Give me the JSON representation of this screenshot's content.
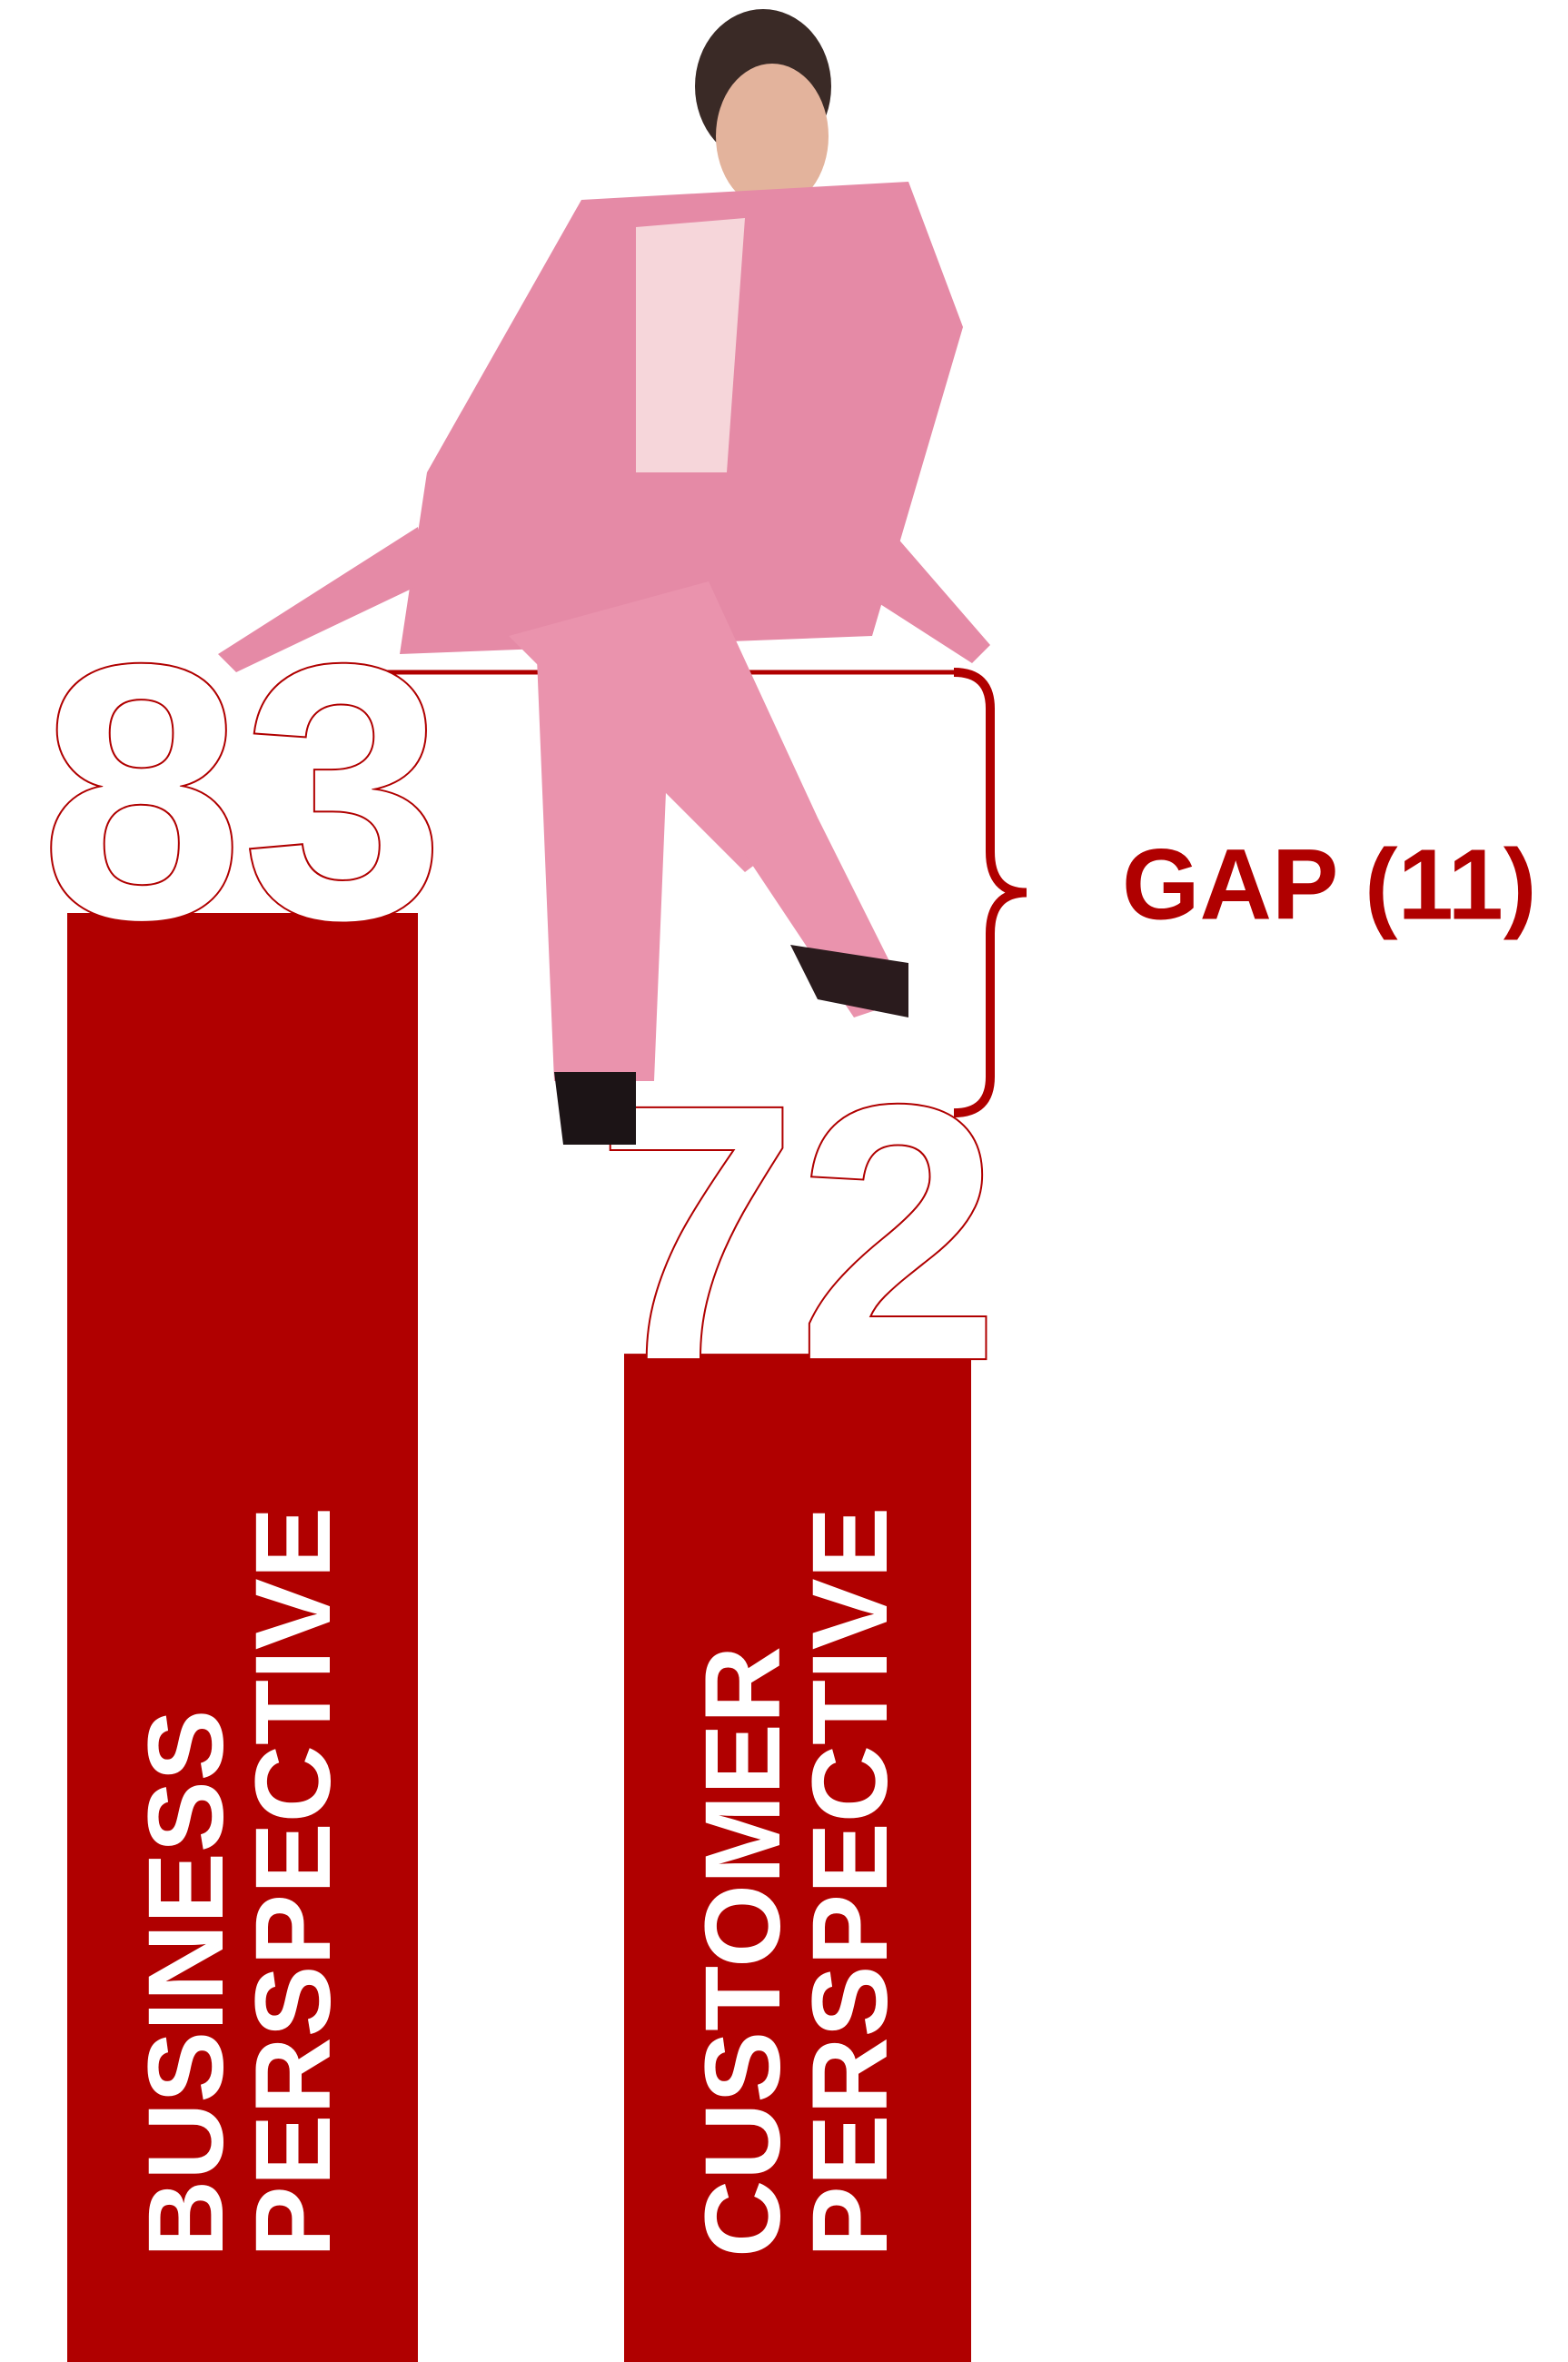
{
  "chart_data": {
    "type": "bar",
    "categories": [
      [
        "BUSINESS",
        "PERSPECTIVE"
      ],
      [
        "CUSTOMER",
        "PERSPECTIVE"
      ]
    ],
    "values": [
      83,
      72
    ],
    "color": "#b00000",
    "annotation": "GAP (11)"
  }
}
